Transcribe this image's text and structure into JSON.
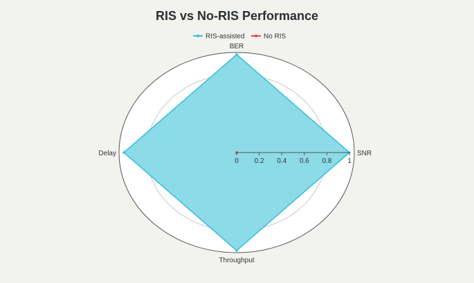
{
  "chart_data": {
    "type": "radar",
    "title": "RIS vs No-RIS Performance",
    "axes": [
      "SNR",
      "Throughput",
      "Delay",
      "BER"
    ],
    "radial_range": [
      0,
      1
    ],
    "radial_ticks": [
      "0",
      "0.2",
      "0.4",
      "0.6",
      "0.8",
      "1"
    ],
    "legend_position": "top-center",
    "series": [
      {
        "name": "RIS-assisted",
        "values": [
          1,
          1,
          1,
          1
        ],
        "color": "#33bfd9",
        "fill": "#86d9e6"
      },
      {
        "name": "No RIS",
        "values": [
          0,
          0,
          0,
          0
        ],
        "color": "#e0474c"
      }
    ]
  }
}
